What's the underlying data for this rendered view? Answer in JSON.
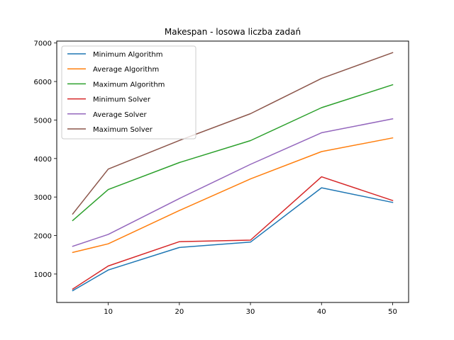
{
  "chart_data": {
    "type": "line",
    "title": "Makespan - losowa liczba zadań",
    "xlabel": "",
    "ylabel": "",
    "x": [
      5,
      10,
      20,
      30,
      40,
      50
    ],
    "xticks": [
      10,
      20,
      30,
      40,
      50
    ],
    "xlim": [
      2.75,
      52.25
    ],
    "yticks": [
      1000,
      2000,
      3000,
      4000,
      5000,
      6000,
      7000
    ],
    "ylim": [
      262,
      7050
    ],
    "grid": false,
    "legend_position": "upper-left",
    "series": [
      {
        "name": "Minimum Algorithm",
        "color": "#1f77b4",
        "values": [
          570,
          1105,
          1690,
          1830,
          3240,
          2860
        ]
      },
      {
        "name": "Average Algorithm",
        "color": "#ff7f0e",
        "values": [
          1560,
          1785,
          2650,
          3470,
          4180,
          4535
        ]
      },
      {
        "name": "Maximum Algorithm",
        "color": "#2ca02c",
        "values": [
          2390,
          3195,
          3895,
          4465,
          5320,
          5915
        ]
      },
      {
        "name": "Minimum Solver",
        "color": "#d62728",
        "values": [
          610,
          1210,
          1840,
          1880,
          3525,
          2910
        ]
      },
      {
        "name": "Average Solver",
        "color": "#9467bd",
        "values": [
          1720,
          2030,
          2960,
          3850,
          4670,
          5030
        ]
      },
      {
        "name": "Maximum Solver",
        "color": "#8c564b",
        "values": [
          2560,
          3725,
          4470,
          5165,
          6080,
          6750
        ]
      }
    ]
  }
}
